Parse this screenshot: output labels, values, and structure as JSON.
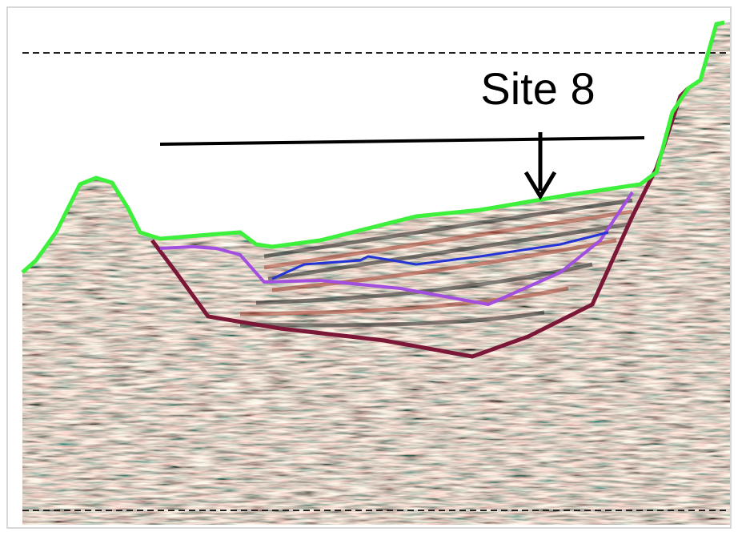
{
  "label": "Site 8"
}
